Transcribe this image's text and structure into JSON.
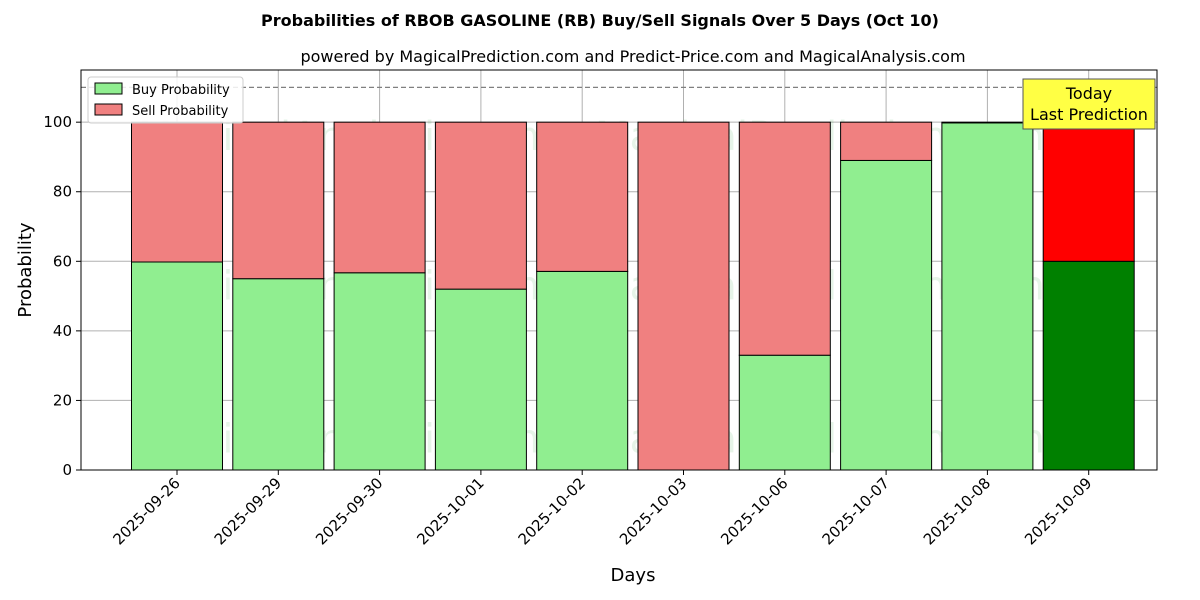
{
  "chart_data": {
    "type": "bar",
    "stacked": true,
    "title": "Probabilities of RBOB GASOLINE (RB) Buy/Sell Signals Over 5 Days (Oct 10)",
    "subtitle": "powered by MagicalPrediction.com and Predict-Price.com and MagicalAnalysis.com",
    "xlabel": "Days",
    "ylabel": "Probability",
    "ylim": [
      0,
      115
    ],
    "yticks": [
      0,
      20,
      40,
      60,
      80,
      100
    ],
    "categories": [
      "2025-09-26",
      "2025-09-29",
      "2025-09-30",
      "2025-10-01",
      "2025-10-02",
      "2025-10-03",
      "2025-10-06",
      "2025-10-07",
      "2025-10-08",
      "2025-10-09"
    ],
    "series": [
      {
        "name": "Buy Probability",
        "color": "#90ee90",
        "values": [
          59.8,
          55.0,
          56.7,
          52.0,
          57.1,
          0.0,
          33.0,
          89.0,
          99.8,
          60.0
        ]
      },
      {
        "name": "Sell Probability",
        "color": "#f08080",
        "values": [
          40.2,
          45.0,
          43.3,
          48.0,
          42.9,
          100.0,
          67.0,
          11.0,
          0.2,
          40.0
        ]
      }
    ],
    "highlight": {
      "index": 9,
      "buy_color": "#008000",
      "sell_color": "#ff0000"
    },
    "reference_line": 110,
    "annotation": {
      "lines": [
        "Today",
        "Last Prediction"
      ],
      "background": "#ffff44"
    },
    "grid": true,
    "legend_position": "top-left",
    "watermarks": [
      "MagicalAnalysis.com",
      "MagicalPrediction.com"
    ]
  }
}
